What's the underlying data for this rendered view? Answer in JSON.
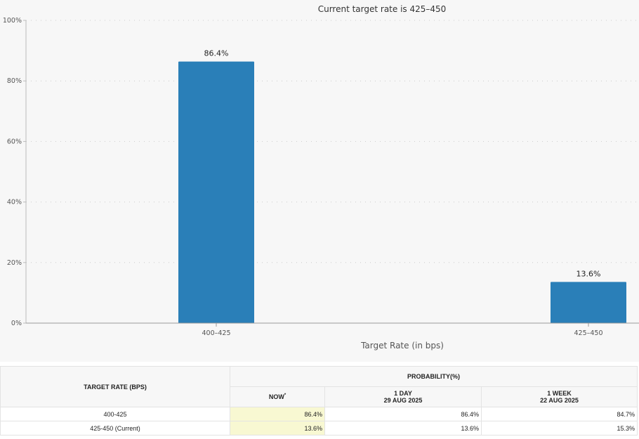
{
  "chart_data": {
    "type": "bar",
    "title": "Current target rate is 425–450",
    "categories": [
      "400–425",
      "425–450"
    ],
    "values": [
      86.4,
      13.6
    ],
    "data_labels": [
      "86.4%",
      "13.6%"
    ],
    "xlabel": "Target Rate (in bps)",
    "ylabel": "",
    "ylim": [
      0,
      100
    ],
    "yticks": [
      "0%",
      "20%",
      "40%",
      "60%",
      "80%",
      "100%"
    ],
    "grid": true,
    "bar_color": "#2a7fb8"
  },
  "table": {
    "col_header": "TARGET RATE (BPS)",
    "group_header": "PROBABILITY(%)",
    "now_label": "NOW",
    "now_mark": "*",
    "day_label": "1 DAY",
    "day_date": "29 AUG 2025",
    "week_label": "1 WEEK",
    "week_date": "22 AUG 2025",
    "rows": [
      {
        "rate": "400-425",
        "now": "86.4%",
        "day": "86.4%",
        "week": "84.7%"
      },
      {
        "rate": "425-450 (Current)",
        "now": "13.6%",
        "day": "13.6%",
        "week": "15.3%"
      }
    ]
  }
}
